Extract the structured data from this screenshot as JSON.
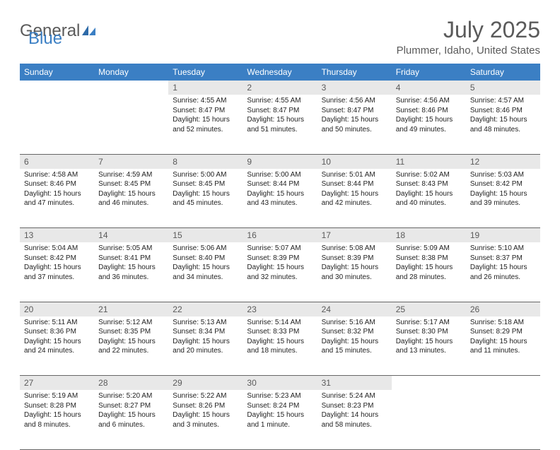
{
  "logo": {
    "text1": "General",
    "text2": "Blue"
  },
  "title": "July 2025",
  "subtitle": "Plummer, Idaho, United States",
  "header_bg": "#3b7fc4",
  "header_fg": "#ffffff",
  "daynum_bg": "#e8e8e8",
  "text_color": "#5a5a5a",
  "days": [
    "Sunday",
    "Monday",
    "Tuesday",
    "Wednesday",
    "Thursday",
    "Friday",
    "Saturday"
  ],
  "weeks": [
    [
      null,
      null,
      {
        "n": "1",
        "sunrise": "4:55 AM",
        "sunset": "8:47 PM",
        "dl": "15 hours and 52 minutes."
      },
      {
        "n": "2",
        "sunrise": "4:55 AM",
        "sunset": "8:47 PM",
        "dl": "15 hours and 51 minutes."
      },
      {
        "n": "3",
        "sunrise": "4:56 AM",
        "sunset": "8:47 PM",
        "dl": "15 hours and 50 minutes."
      },
      {
        "n": "4",
        "sunrise": "4:56 AM",
        "sunset": "8:46 PM",
        "dl": "15 hours and 49 minutes."
      },
      {
        "n": "5",
        "sunrise": "4:57 AM",
        "sunset": "8:46 PM",
        "dl": "15 hours and 48 minutes."
      }
    ],
    [
      {
        "n": "6",
        "sunrise": "4:58 AM",
        "sunset": "8:46 PM",
        "dl": "15 hours and 47 minutes."
      },
      {
        "n": "7",
        "sunrise": "4:59 AM",
        "sunset": "8:45 PM",
        "dl": "15 hours and 46 minutes."
      },
      {
        "n": "8",
        "sunrise": "5:00 AM",
        "sunset": "8:45 PM",
        "dl": "15 hours and 45 minutes."
      },
      {
        "n": "9",
        "sunrise": "5:00 AM",
        "sunset": "8:44 PM",
        "dl": "15 hours and 43 minutes."
      },
      {
        "n": "10",
        "sunrise": "5:01 AM",
        "sunset": "8:44 PM",
        "dl": "15 hours and 42 minutes."
      },
      {
        "n": "11",
        "sunrise": "5:02 AM",
        "sunset": "8:43 PM",
        "dl": "15 hours and 40 minutes."
      },
      {
        "n": "12",
        "sunrise": "5:03 AM",
        "sunset": "8:42 PM",
        "dl": "15 hours and 39 minutes."
      }
    ],
    [
      {
        "n": "13",
        "sunrise": "5:04 AM",
        "sunset": "8:42 PM",
        "dl": "15 hours and 37 minutes."
      },
      {
        "n": "14",
        "sunrise": "5:05 AM",
        "sunset": "8:41 PM",
        "dl": "15 hours and 36 minutes."
      },
      {
        "n": "15",
        "sunrise": "5:06 AM",
        "sunset": "8:40 PM",
        "dl": "15 hours and 34 minutes."
      },
      {
        "n": "16",
        "sunrise": "5:07 AM",
        "sunset": "8:39 PM",
        "dl": "15 hours and 32 minutes."
      },
      {
        "n": "17",
        "sunrise": "5:08 AM",
        "sunset": "8:39 PM",
        "dl": "15 hours and 30 minutes."
      },
      {
        "n": "18",
        "sunrise": "5:09 AM",
        "sunset": "8:38 PM",
        "dl": "15 hours and 28 minutes."
      },
      {
        "n": "19",
        "sunrise": "5:10 AM",
        "sunset": "8:37 PM",
        "dl": "15 hours and 26 minutes."
      }
    ],
    [
      {
        "n": "20",
        "sunrise": "5:11 AM",
        "sunset": "8:36 PM",
        "dl": "15 hours and 24 minutes."
      },
      {
        "n": "21",
        "sunrise": "5:12 AM",
        "sunset": "8:35 PM",
        "dl": "15 hours and 22 minutes."
      },
      {
        "n": "22",
        "sunrise": "5:13 AM",
        "sunset": "8:34 PM",
        "dl": "15 hours and 20 minutes."
      },
      {
        "n": "23",
        "sunrise": "5:14 AM",
        "sunset": "8:33 PM",
        "dl": "15 hours and 18 minutes."
      },
      {
        "n": "24",
        "sunrise": "5:16 AM",
        "sunset": "8:32 PM",
        "dl": "15 hours and 15 minutes."
      },
      {
        "n": "25",
        "sunrise": "5:17 AM",
        "sunset": "8:30 PM",
        "dl": "15 hours and 13 minutes."
      },
      {
        "n": "26",
        "sunrise": "5:18 AM",
        "sunset": "8:29 PM",
        "dl": "15 hours and 11 minutes."
      }
    ],
    [
      {
        "n": "27",
        "sunrise": "5:19 AM",
        "sunset": "8:28 PM",
        "dl": "15 hours and 8 minutes."
      },
      {
        "n": "28",
        "sunrise": "5:20 AM",
        "sunset": "8:27 PM",
        "dl": "15 hours and 6 minutes."
      },
      {
        "n": "29",
        "sunrise": "5:22 AM",
        "sunset": "8:26 PM",
        "dl": "15 hours and 3 minutes."
      },
      {
        "n": "30",
        "sunrise": "5:23 AM",
        "sunset": "8:24 PM",
        "dl": "15 hours and 1 minute."
      },
      {
        "n": "31",
        "sunrise": "5:24 AM",
        "sunset": "8:23 PM",
        "dl": "14 hours and 58 minutes."
      },
      null,
      null
    ]
  ],
  "labels": {
    "sunrise": "Sunrise:",
    "sunset": "Sunset:",
    "daylight": "Daylight:"
  }
}
